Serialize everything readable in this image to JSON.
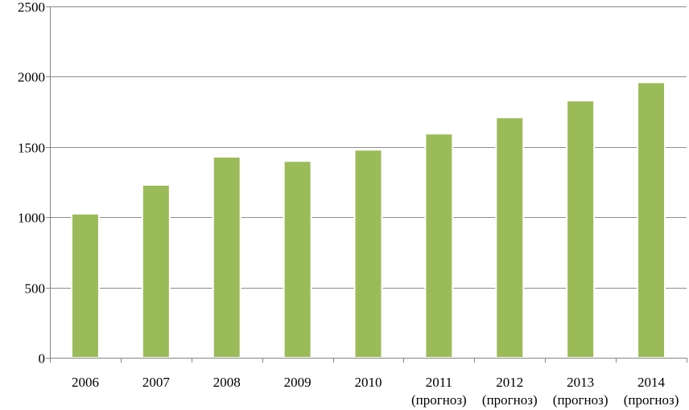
{
  "chart_data": {
    "type": "bar",
    "title": "",
    "xlabel": "",
    "ylabel": "",
    "categories": [
      [
        "2006"
      ],
      [
        "2007"
      ],
      [
        "2008"
      ],
      [
        "2009"
      ],
      [
        "2010"
      ],
      [
        "2011",
        "(прогноз)"
      ],
      [
        "2012",
        "(прогноз)"
      ],
      [
        "2013",
        "(прогноз)"
      ],
      [
        "2014",
        "(прогноз)"
      ]
    ],
    "values": [
      1025,
      1230,
      1430,
      1400,
      1480,
      1595,
      1710,
      1830,
      1960
    ],
    "ylim": [
      0,
      2500
    ],
    "yticks": [
      0,
      500,
      1000,
      1500,
      2000,
      2500
    ],
    "grid": true,
    "legend": "none",
    "colors": {
      "bar": "#9BBB59",
      "bar_edge": "#ffffff",
      "grid": "#8c8c8c",
      "axis": "#868686"
    }
  }
}
